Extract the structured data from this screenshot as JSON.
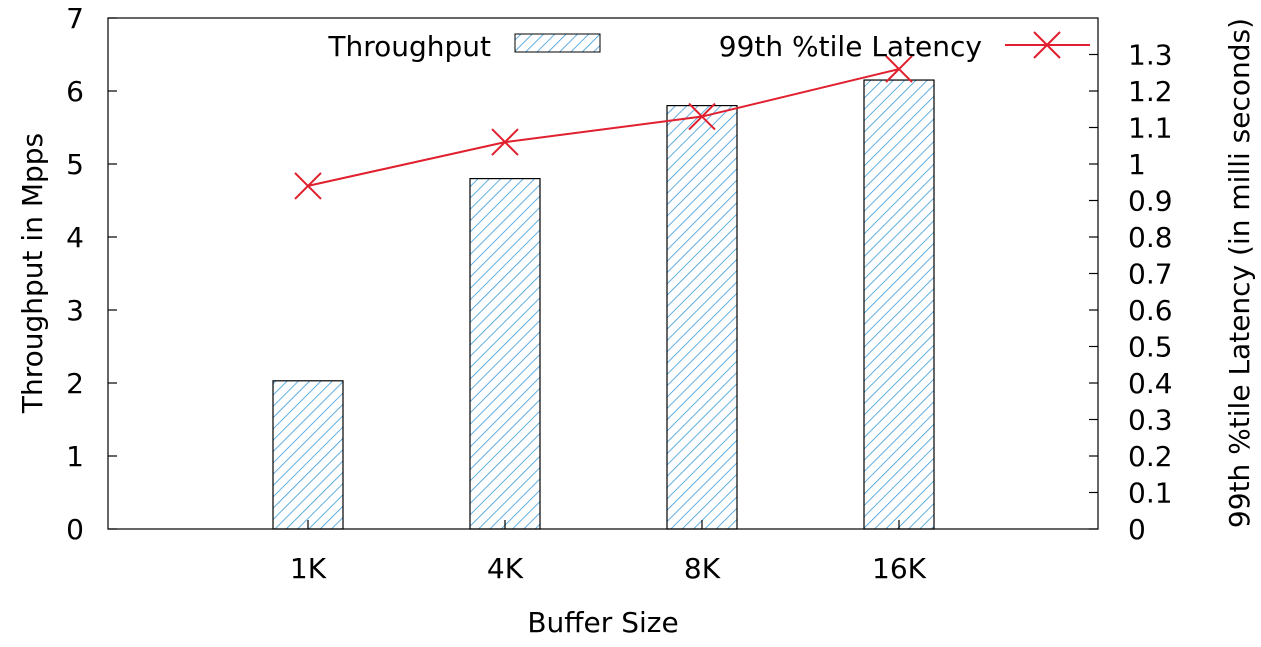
{
  "chart_data": {
    "type": "bar",
    "categories": [
      "1K",
      "4K",
      "8K",
      "16K"
    ],
    "xlabel": "Buffer Size",
    "ylabel": "Throughput in Mpps",
    "y2label": "99th %tile Latency (in milli seconds)",
    "ylim": [
      0,
      7
    ],
    "y2lim": [
      0,
      1.4
    ],
    "yticks": [
      "0",
      "1",
      "2",
      "3",
      "4",
      "5",
      "6",
      "7"
    ],
    "y2ticks": [
      "0",
      "0.1",
      "0.2",
      "0.3",
      "0.4",
      "0.5",
      "0.6",
      "0.7",
      "0.8",
      "0.9",
      "1",
      "1.1",
      "1.2",
      "1.3"
    ],
    "grid": false,
    "legend_position": "top",
    "series": [
      {
        "name": "Throughput",
        "type": "bar",
        "axis": "left",
        "pattern": "diagonal-hatch",
        "color": "#3a9ad9",
        "values": [
          2.03,
          4.8,
          5.8,
          6.15
        ]
      },
      {
        "name": "99th %tile Latency",
        "type": "line",
        "axis": "right",
        "marker": "x",
        "color": "#e0202e",
        "values": [
          0.94,
          1.06,
          1.13,
          1.26
        ]
      }
    ]
  }
}
